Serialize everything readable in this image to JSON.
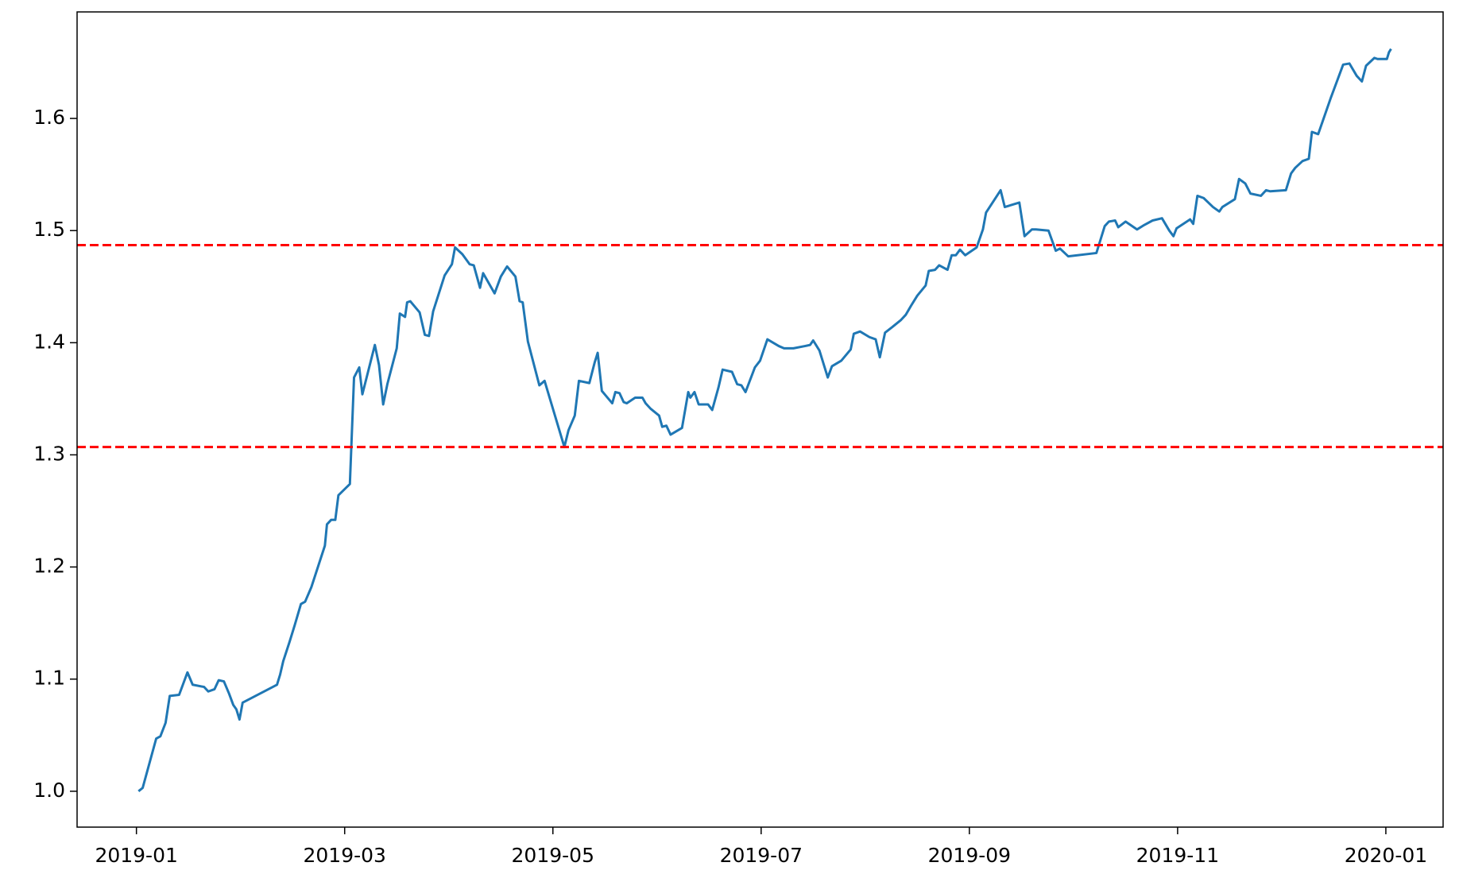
{
  "chart_data": {
    "type": "line",
    "color": "#1f77b4",
    "xlim": [
      -0.57,
      12.55
    ],
    "ylim": [
      0.968,
      1.695
    ],
    "xticks": [
      {
        "value": 0,
        "label": "2019-01"
      },
      {
        "value": 2,
        "label": "2019-03"
      },
      {
        "value": 4,
        "label": "2019-05"
      },
      {
        "value": 6,
        "label": "2019-07"
      },
      {
        "value": 8,
        "label": "2019-09"
      },
      {
        "value": 10,
        "label": "2019-11"
      },
      {
        "value": 12,
        "label": "2020-01"
      }
    ],
    "yticks": [
      {
        "value": 1.0,
        "label": "1.0"
      },
      1.1,
      1.2,
      1.3,
      1.4,
      1.5,
      1.6
    ],
    "grid": false,
    "hlines": [
      {
        "value": 1.487,
        "color": "#ff0000"
      },
      {
        "value": 1.307,
        "color": "#ff0000"
      }
    ],
    "x": [
      0.02,
      0.06,
      0.19,
      0.23,
      0.28,
      0.32,
      0.41,
      0.49,
      0.54,
      0.65,
      0.69,
      0.75,
      0.79,
      0.84,
      0.89,
      0.93,
      0.96,
      0.99,
      1.02,
      1.35,
      1.38,
      1.41,
      1.47,
      1.52,
      1.58,
      1.62,
      1.68,
      1.81,
      1.83,
      1.87,
      1.91,
      1.94,
      2.05,
      2.09,
      2.14,
      2.17,
      2.29,
      2.33,
      2.37,
      2.41,
      2.5,
      2.53,
      2.58,
      2.6,
      2.63,
      2.72,
      2.77,
      2.81,
      2.85,
      2.96,
      3.03,
      3.06,
      3.13,
      3.2,
      3.24,
      3.3,
      3.33,
      3.44,
      3.5,
      3.56,
      3.64,
      3.68,
      3.71,
      3.76,
      3.87,
      3.92,
      4.11,
      4.15,
      4.21,
      4.25,
      4.35,
      4.4,
      4.43,
      4.47,
      4.57,
      4.6,
      4.64,
      4.68,
      4.71,
      4.79,
      4.86,
      4.89,
      4.94,
      5.02,
      5.05,
      5.09,
      5.13,
      5.24,
      5.3,
      5.32,
      5.36,
      5.4,
      5.49,
      5.53,
      5.59,
      5.63,
      5.72,
      5.77,
      5.81,
      5.85,
      5.94,
      5.99,
      6.06,
      6.17,
      6.22,
      6.31,
      6.42,
      6.47,
      6.5,
      6.56,
      6.64,
      6.68,
      6.77,
      6.86,
      6.89,
      6.95,
      7.04,
      7.1,
      7.14,
      7.19,
      7.26,
      7.34,
      7.39,
      7.44,
      7.5,
      7.58,
      7.61,
      7.67,
      7.71,
      7.79,
      7.83,
      7.87,
      7.91,
      7.96,
      8.07,
      8.13,
      8.16,
      8.3,
      8.34,
      8.48,
      8.53,
      8.6,
      8.64,
      8.76,
      8.83,
      8.87,
      8.95,
      9.22,
      9.3,
      9.34,
      9.4,
      9.43,
      9.5,
      9.61,
      9.68,
      9.76,
      9.85,
      9.92,
      9.96,
      9.99,
      10.12,
      10.15,
      10.19,
      10.25,
      10.34,
      10.4,
      10.43,
      10.55,
      10.59,
      10.65,
      10.7,
      10.8,
      10.85,
      10.89,
      11.04,
      11.09,
      11.13,
      11.2,
      11.26,
      11.29,
      11.35,
      11.47,
      11.53,
      11.59,
      11.65,
      11.72,
      11.77,
      11.81,
      11.89,
      11.92,
      12.01,
      12.03,
      12.05
    ],
    "values": [
      1.0,
      1.003,
      1.047,
      1.049,
      1.061,
      1.085,
      1.086,
      1.106,
      1.095,
      1.093,
      1.089,
      1.091,
      1.099,
      1.098,
      1.087,
      1.077,
      1.073,
      1.064,
      1.079,
      1.095,
      1.104,
      1.116,
      1.133,
      1.148,
      1.167,
      1.169,
      1.182,
      1.219,
      1.238,
      1.242,
      1.242,
      1.264,
      1.274,
      1.369,
      1.378,
      1.354,
      1.398,
      1.38,
      1.345,
      1.363,
      1.395,
      1.426,
      1.423,
      1.436,
      1.437,
      1.427,
      1.407,
      1.406,
      1.428,
      1.46,
      1.47,
      1.485,
      1.479,
      1.47,
      1.469,
      1.449,
      1.462,
      1.444,
      1.459,
      1.468,
      1.459,
      1.437,
      1.436,
      1.401,
      1.362,
      1.366,
      1.307,
      1.322,
      1.335,
      1.366,
      1.364,
      1.382,
      1.391,
      1.357,
      1.346,
      1.356,
      1.355,
      1.347,
      1.346,
      1.351,
      1.351,
      1.346,
      1.341,
      1.335,
      1.325,
      1.326,
      1.318,
      1.324,
      1.356,
      1.351,
      1.356,
      1.345,
      1.345,
      1.34,
      1.36,
      1.376,
      1.374,
      1.363,
      1.362,
      1.356,
      1.378,
      1.384,
      1.403,
      1.397,
      1.395,
      1.395,
      1.397,
      1.398,
      1.402,
      1.393,
      1.369,
      1.379,
      1.384,
      1.394,
      1.408,
      1.41,
      1.405,
      1.403,
      1.387,
      1.409,
      1.414,
      1.42,
      1.425,
      1.433,
      1.442,
      1.451,
      1.464,
      1.465,
      1.469,
      1.465,
      1.478,
      1.478,
      1.483,
      1.478,
      1.485,
      1.501,
      1.516,
      1.536,
      1.521,
      1.525,
      1.495,
      1.501,
      1.501,
      1.5,
      1.482,
      1.484,
      1.477,
      1.48,
      1.504,
      1.508,
      1.509,
      1.503,
      1.508,
      1.501,
      1.505,
      1.509,
      1.511,
      1.5,
      1.495,
      1.502,
      1.51,
      1.506,
      1.531,
      1.529,
      1.521,
      1.517,
      1.521,
      1.528,
      1.546,
      1.542,
      1.533,
      1.531,
      1.536,
      1.535,
      1.536,
      1.551,
      1.556,
      1.562,
      1.564,
      1.588,
      1.586,
      1.618,
      1.633,
      1.648,
      1.649,
      1.638,
      1.633,
      1.647,
      1.654,
      1.653,
      1.653,
      1.659,
      1.662
    ]
  }
}
